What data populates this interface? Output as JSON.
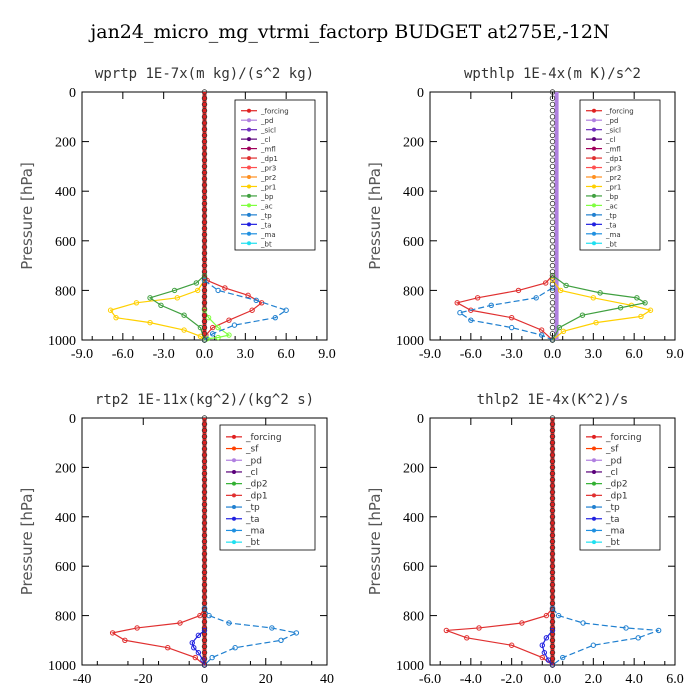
{
  "figure": {
    "title": "jan24_micro_mg_vtrmi_factorp  BUDGET at275E,-12N"
  },
  "colors": {
    "_forcing": "#e02020",
    "_pd": "#b080e0",
    "_sicl": "#7030c0",
    "_cl": "#5a007a",
    "_mfl": "#a0005a",
    "_dp1": "#e03030",
    "_pr3": "#ff5050",
    "_pr2": "#ff9020",
    "_pr1": "#ffd000",
    "_bp": "#40a040",
    "_ac": "#80ff40",
    "_tp": "#2080d0",
    "_ta": "#2020e0",
    "_ma": "#2090e0",
    "_bt": "#20e0f0",
    "_sf": "#ff4000",
    "_dp2": "#30b030"
  },
  "chart_data": [
    {
      "type": "line",
      "title": "wprtp   1E-7x(m kg)/(s^2 kg)",
      "ylabel": "Pressure [hPa]",
      "xlim": [
        -9,
        9
      ],
      "ylim": [
        1000,
        0
      ],
      "xticks": [
        "-9.0",
        "-6.0",
        "-3.0",
        "0.0",
        "3.0",
        "6.0",
        "9.0"
      ],
      "yticks": [
        "0",
        "200",
        "400",
        "600",
        "800",
        "1000"
      ],
      "legend_labels": [
        "_forcing",
        "_pd",
        "_sicl",
        "_cl",
        "_mfl",
        "_dp1",
        "_pr3",
        "_pr2",
        "_pr1",
        "_bp",
        "_ac",
        "_tp",
        "_ta",
        "_ma",
        "_bt"
      ],
      "series": [
        {
          "name": "_forcing",
          "x": [
            0,
            0
          ],
          "y": [
            0,
            1000
          ]
        },
        {
          "name": "_dp1",
          "x": [
            0,
            0.2,
            1.5,
            3.2,
            4.2,
            3.5,
            1.8,
            0.6,
            0.1,
            0
          ],
          "y": [
            700,
            760,
            790,
            820,
            850,
            880,
            920,
            950,
            980,
            1000
          ]
        },
        {
          "name": "_pr1",
          "x": [
            0,
            -0.5,
            -2,
            -5,
            -6.9,
            -6.5,
            -4,
            -1.5,
            -0.3,
            0
          ],
          "y": [
            760,
            800,
            830,
            850,
            880,
            910,
            930,
            960,
            985,
            1000
          ]
        },
        {
          "name": "_bp",
          "x": [
            0,
            -0.6,
            -2.2,
            -4,
            -3.2,
            -1.5,
            -0.3,
            0
          ],
          "y": [
            740,
            770,
            800,
            830,
            860,
            900,
            950,
            1000
          ]
        },
        {
          "name": "_ac",
          "x": [
            0,
            0.3,
            1,
            1.8,
            1,
            0.2,
            0
          ],
          "y": [
            880,
            910,
            950,
            980,
            990,
            995,
            1000
          ]
        },
        {
          "name": "_tp",
          "x": [
            0,
            1,
            3.8,
            6,
            5.2,
            2.2,
            0.6,
            0
          ],
          "y": [
            760,
            800,
            840,
            880,
            910,
            940,
            975,
            1000
          ]
        }
      ]
    },
    {
      "type": "line",
      "title": "wpthlp   1E-4x(m K)/s^2",
      "ylabel": "Pressure [hPa]",
      "xlim": [
        -9,
        9
      ],
      "ylim": [
        1000,
        0
      ],
      "xticks": [
        "-9.0",
        "-6.0",
        "-3.0",
        "0.0",
        "3.0",
        "6.0",
        "9.0"
      ],
      "yticks": [
        "0",
        "200",
        "400",
        "600",
        "800",
        "1000"
      ],
      "legend_labels": [
        "_forcing",
        "_pd",
        "_sicl",
        "_cl",
        "_mfl",
        "_dp1",
        "_pr3",
        "_pr2",
        "_pr1",
        "_bp",
        "_ac",
        "_tp",
        "_ta",
        "_ma",
        "_bt"
      ],
      "series": [
        {
          "name": "_pd",
          "x": [
            0.3,
            0.3
          ],
          "y": [
            0,
            1000
          ]
        },
        {
          "name": "_dp1",
          "x": [
            0,
            -0.5,
            -2.5,
            -5.5,
            -7,
            -6,
            -3,
            -0.8,
            0
          ],
          "y": [
            740,
            770,
            800,
            830,
            850,
            880,
            910,
            960,
            1000
          ]
        },
        {
          "name": "_pr1",
          "x": [
            0,
            0.6,
            3,
            5.8,
            7.2,
            6.5,
            3.2,
            0.8,
            0
          ],
          "y": [
            760,
            800,
            830,
            860,
            880,
            905,
            930,
            965,
            1000
          ]
        },
        {
          "name": "_bp",
          "x": [
            0,
            1,
            3.5,
            6.2,
            6.8,
            5,
            2.2,
            0.5,
            0
          ],
          "y": [
            740,
            780,
            810,
            830,
            850,
            870,
            900,
            950,
            1000
          ]
        },
        {
          "name": "_tp",
          "x": [
            0,
            -1.2,
            -4.5,
            -6.8,
            -6,
            -3,
            -0.8,
            0
          ],
          "y": [
            790,
            830,
            860,
            890,
            920,
            950,
            980,
            1000
          ]
        }
      ]
    },
    {
      "type": "line",
      "title": "rtp2   1E-11x(kg^2)/(kg^2 s)",
      "ylabel": "Pressure [hPa]",
      "xlim": [
        -40,
        40
      ],
      "ylim": [
        1000,
        0
      ],
      "xticks": [
        "-40",
        "-20",
        "0",
        "20",
        "40"
      ],
      "yticks": [
        "0",
        "200",
        "400",
        "600",
        "800",
        "1000"
      ],
      "legend_labels": [
        "_forcing",
        "_sf",
        "_pd",
        "_cl",
        "_dp2",
        "_dp1",
        "_tp",
        "_ta",
        "_ma",
        "_bt"
      ],
      "series": [
        {
          "name": "_forcing",
          "x": [
            0,
            0
          ],
          "y": [
            0,
            1000
          ]
        },
        {
          "name": "_dp1",
          "x": [
            0,
            -1.5,
            -8,
            -22,
            -30,
            -26,
            -12,
            -3,
            0
          ],
          "y": [
            770,
            800,
            830,
            850,
            870,
            900,
            930,
            970,
            1000
          ]
        },
        {
          "name": "_tp",
          "x": [
            0,
            1.5,
            8,
            22,
            30,
            25,
            10,
            2.5,
            0
          ],
          "y": [
            770,
            800,
            830,
            850,
            870,
            900,
            930,
            970,
            1000
          ]
        },
        {
          "name": "_ta",
          "x": [
            0,
            -2,
            -4,
            -3.5,
            -2,
            -0.5,
            0
          ],
          "y": [
            860,
            880,
            910,
            930,
            950,
            980,
            1000
          ]
        }
      ]
    },
    {
      "type": "line",
      "title": "thlp2   1E-4x(K^2)/s",
      "ylabel": "Pressure [hPa]",
      "xlim": [
        -6,
        6
      ],
      "ylim": [
        1000,
        0
      ],
      "xticks": [
        "-6.0",
        "-4.0",
        "-2.0",
        "0.0",
        "2.0",
        "4.0",
        "6.0"
      ],
      "yticks": [
        "0",
        "200",
        "400",
        "600",
        "800",
        "1000"
      ],
      "legend_labels": [
        "_forcing",
        "_sf",
        "_pd",
        "_cl",
        "_dp2",
        "_dp1",
        "_tp",
        "_ta",
        "_ma",
        "_bt"
      ],
      "series": [
        {
          "name": "_forcing",
          "x": [
            0,
            0
          ],
          "y": [
            0,
            1000
          ]
        },
        {
          "name": "_dp1",
          "x": [
            0,
            -0.3,
            -1.5,
            -3.6,
            -5.2,
            -4.2,
            -2,
            -0.5,
            0
          ],
          "y": [
            770,
            800,
            830,
            850,
            860,
            890,
            920,
            970,
            1000
          ]
        },
        {
          "name": "_tp",
          "x": [
            0,
            0.3,
            1.5,
            3.6,
            5.2,
            4.2,
            2,
            0.5,
            0
          ],
          "y": [
            770,
            800,
            830,
            850,
            860,
            890,
            920,
            970,
            1000
          ]
        },
        {
          "name": "_ta",
          "x": [
            0,
            -0.3,
            -0.5,
            -0.4,
            -0.2,
            0
          ],
          "y": [
            860,
            890,
            920,
            950,
            980,
            1000
          ]
        }
      ]
    }
  ]
}
